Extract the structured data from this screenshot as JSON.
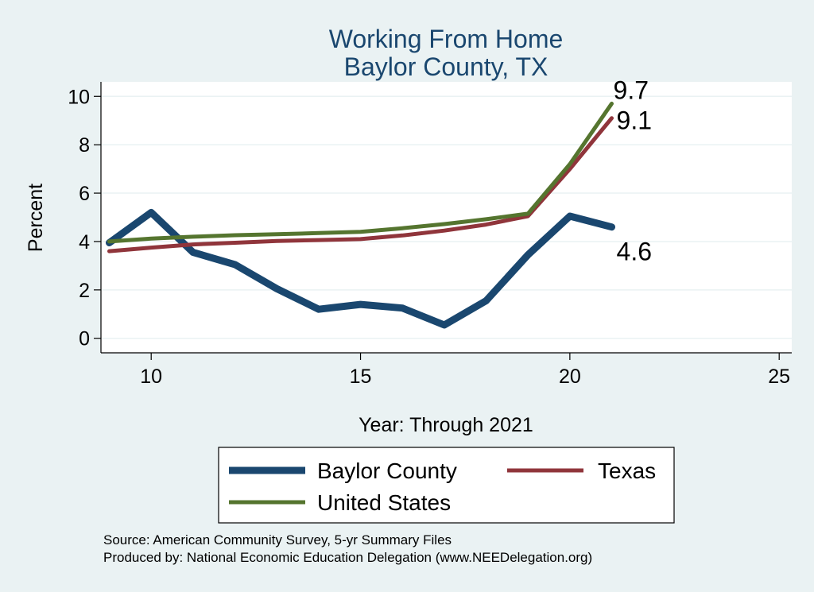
{
  "chart_data": {
    "type": "line",
    "title": [
      "Working From Home",
      "Baylor County, TX"
    ],
    "xlabel": "Year: Through 2021",
    "ylabel": "Percent",
    "xlim": [
      8.8,
      25.3
    ],
    "ylim": [
      -0.6,
      10.6
    ],
    "xticks": [
      10,
      15,
      20,
      25
    ],
    "yticks": [
      0,
      2,
      4,
      6,
      8,
      10
    ],
    "grid": true,
    "legend_position": "bottom",
    "series": [
      {
        "name": "Baylor County",
        "color": "#1a476f",
        "width": 9,
        "x": [
          9,
          10,
          11,
          12,
          13,
          14,
          15,
          16,
          17,
          18,
          19,
          20,
          21
        ],
        "y": [
          3.95,
          5.2,
          3.55,
          3.05,
          2.05,
          1.2,
          1.4,
          1.25,
          0.55,
          1.55,
          3.45,
          5.05,
          4.6
        ],
        "end_label": "4.6"
      },
      {
        "name": "Texas",
        "color": "#90353b",
        "width": 5,
        "x": [
          9,
          10,
          11,
          12,
          13,
          14,
          15,
          16,
          17,
          18,
          19,
          20,
          21
        ],
        "y": [
          3.6,
          3.75,
          3.88,
          3.95,
          4.02,
          4.06,
          4.1,
          4.25,
          4.45,
          4.7,
          5.05,
          7.0,
          9.1
        ],
        "end_label": "9.1"
      },
      {
        "name": "United States",
        "color": "#55752f",
        "width": 5,
        "x": [
          9,
          10,
          11,
          12,
          13,
          14,
          15,
          16,
          17,
          18,
          19,
          20,
          21
        ],
        "y": [
          4.0,
          4.12,
          4.2,
          4.26,
          4.3,
          4.35,
          4.4,
          4.55,
          4.72,
          4.92,
          5.15,
          7.2,
          9.7
        ],
        "end_label": "9.7"
      }
    ]
  },
  "notes": {
    "source": "Source: American Community Survey, 5-yr Summary Files",
    "produced": "Produced by: National Economic Education Delegation (www.NEEDelegation.org)"
  }
}
